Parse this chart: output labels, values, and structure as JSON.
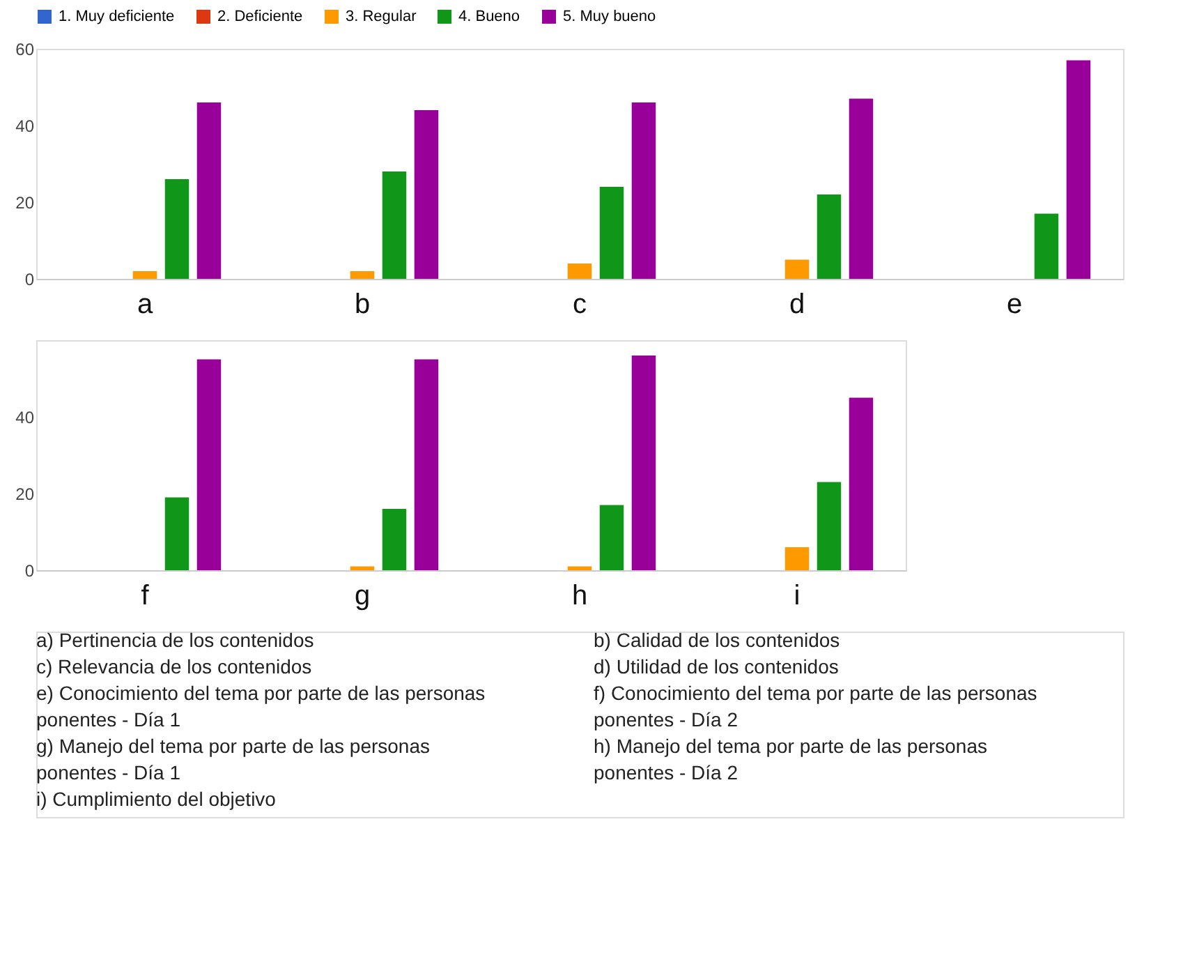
{
  "chart_data": [
    {
      "type": "bar",
      "categories": [
        "a",
        "b",
        "c",
        "d",
        "e"
      ],
      "ylim": [
        0,
        60
      ],
      "yticks": [
        0,
        20,
        40,
        60
      ],
      "grid": false,
      "legend": "top",
      "series": [
        {
          "name": "1. Muy deficiente",
          "color": "#3366cc",
          "values": [
            0,
            0,
            0,
            0,
            0
          ]
        },
        {
          "name": "2. Deficiente",
          "color": "#dc3912",
          "values": [
            0,
            0,
            0,
            0,
            0
          ]
        },
        {
          "name": "3. Regular",
          "color": "#ff9900",
          "values": [
            2,
            2,
            4,
            5,
            0
          ]
        },
        {
          "name": "4. Bueno",
          "color": "#109618",
          "values": [
            26,
            28,
            24,
            22,
            17
          ]
        },
        {
          "name": "5. Muy bueno",
          "color": "#990099",
          "values": [
            46,
            44,
            46,
            47,
            57
          ]
        }
      ]
    },
    {
      "type": "bar",
      "categories": [
        "f",
        "g",
        "h",
        "i"
      ],
      "ylim": [
        0,
        60
      ],
      "yticks": [
        0,
        20,
        40
      ],
      "grid": false,
      "legend": false,
      "series": [
        {
          "color": "#3366cc",
          "values": [
            0,
            0,
            0,
            0
          ]
        },
        {
          "color": "#dc3912",
          "values": [
            0,
            0,
            0,
            0
          ]
        },
        {
          "color": "#ff9900",
          "values": [
            0,
            1,
            1,
            6
          ]
        },
        {
          "color": "#109618",
          "values": [
            19,
            16,
            17,
            23
          ]
        },
        {
          "color": "#990099",
          "values": [
            55,
            55,
            56,
            45
          ]
        }
      ],
      "annotations": [
        "a) Pertinencia de los contenidos",
        "b) Calidad de los contenidos",
        "c) Relevancia de los contenidos",
        "d) Utilidad de los contenidos",
        "e) Conocimiento del tema por parte de las personas ponentes - Día 1",
        "f) Conocimiento del tema por parte de las personas ponentes - Día 2",
        "g) Manejo del tema por parte de las personas ponentes - Día 1",
        "h) Manejo del tema por parte de las personas ponentes - Día 2",
        "i) Cumplimiento del objetivo"
      ]
    }
  ]
}
